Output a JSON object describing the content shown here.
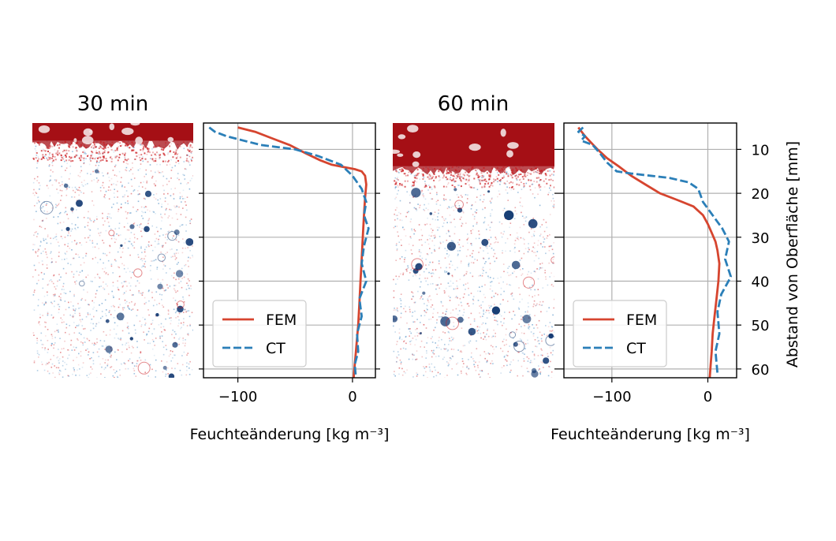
{
  "chart_data": [
    {
      "type": "line",
      "title": "30 min",
      "xlabel": "Feuchteänderung [kg m⁻³]",
      "ylabel": "",
      "xlim": [
        -130,
        20
      ],
      "ylim": [
        62,
        4
      ],
      "xticks": [
        -100,
        0
      ],
      "xtick_labels": [
        "−100",
        "0"
      ],
      "yticks": [
        10,
        20,
        30,
        40,
        50,
        60
      ],
      "grid": true,
      "legend": "lower-left",
      "series": [
        {
          "name": "FEM",
          "color": "#d6452f",
          "style": "solid",
          "x": [
            -100,
            -85,
            -70,
            -55,
            -40,
            -28,
            -18,
            -8,
            2,
            8,
            11,
            12,
            11,
            10,
            9,
            8,
            7,
            6,
            5,
            4,
            3,
            2,
            1
          ],
          "y": [
            5,
            6,
            7.5,
            9,
            11,
            12.5,
            13.5,
            14,
            14.5,
            15,
            16,
            18,
            21,
            25,
            30,
            35,
            40,
            45,
            50,
            53,
            56,
            59,
            62
          ]
        },
        {
          "name": "CT",
          "color": "#2b7fb8",
          "style": "dashed",
          "x": [
            -125,
            -120,
            -110,
            -95,
            -80,
            -65,
            -50,
            -30,
            -10,
            0,
            8,
            12,
            10,
            14,
            10,
            8,
            12,
            6,
            8,
            4,
            5,
            2,
            3
          ],
          "y": [
            5,
            6,
            7,
            8,
            9,
            9.5,
            10,
            11.5,
            13.5,
            16,
            19,
            22,
            25,
            28,
            32,
            36,
            40,
            44,
            48,
            52,
            56,
            59,
            62
          ]
        }
      ]
    },
    {
      "type": "line",
      "title": "60 min",
      "xlabel": "Feuchteänderung [kg m⁻³]",
      "ylabel": "Abstand von Oberfläche [mm]",
      "xlim": [
        -150,
        30
      ],
      "ylim": [
        62,
        4
      ],
      "xticks": [
        -100,
        0
      ],
      "xtick_labels": [
        "−100",
        "0"
      ],
      "yticks": [
        10,
        20,
        30,
        40,
        50,
        60
      ],
      "grid": true,
      "legend": "lower-left",
      "series": [
        {
          "name": "FEM",
          "color": "#d6452f",
          "style": "solid",
          "x": [
            -135,
            -128,
            -115,
            -105,
            -92,
            -80,
            -65,
            -50,
            -32,
            -15,
            -5,
            0,
            4,
            8,
            10,
            12,
            11,
            9,
            7,
            5,
            4,
            3,
            2
          ],
          "y": [
            5,
            7,
            10,
            12,
            14,
            16,
            18,
            20,
            21.5,
            23,
            25,
            27,
            29,
            31,
            33,
            36,
            40,
            44,
            48,
            52,
            56,
            59,
            62
          ]
        },
        {
          "name": "CT",
          "color": "#2b7fb8",
          "style": "dashed",
          "x": [
            -130,
            -135,
            -128,
            -132,
            -120,
            -112,
            -105,
            -95,
            -80,
            -60,
            -40,
            -20,
            -10,
            -5,
            5,
            15,
            22,
            18,
            24,
            14,
            10,
            12,
            8,
            10
          ],
          "y": [
            5,
            6,
            7,
            8,
            9,
            11,
            13,
            15,
            15.5,
            16,
            16.5,
            17.5,
            19,
            22,
            25,
            28,
            31,
            35,
            39,
            43,
            47,
            52,
            56,
            61
          ]
        }
      ]
    }
  ],
  "legend_labels": {
    "fem": "FEM",
    "ct": "CT"
  },
  "images": [
    {
      "title": "30 min",
      "penetration_depth": 0.07,
      "bottom_fraction": 0.55,
      "spots": 22
    },
    {
      "title": "60 min",
      "penetration_depth": 0.17,
      "bottom_fraction": 0.82,
      "spots": 26
    }
  ],
  "colors": {
    "wet": "#a50f15",
    "dry": "#08306b",
    "positive": "#cb181d",
    "negative": "#2171b5"
  }
}
